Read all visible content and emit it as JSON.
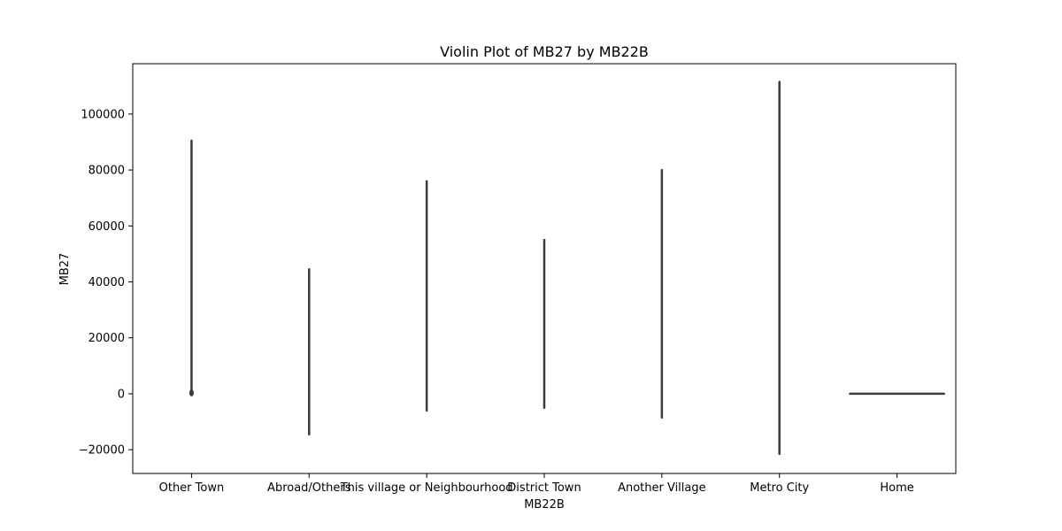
{
  "chart_data": {
    "type": "violin",
    "title": "Violin Plot of MB27 by MB22B",
    "xlabel": "MB22B",
    "ylabel": "MB27",
    "categories": [
      "Other Town",
      "Abroad/Others",
      "This village or Neighbourhood",
      "District Town",
      "Another Village",
      "Metro City",
      "Home"
    ],
    "violins": [
      {
        "category": "Other Town",
        "min": 0,
        "max": 90500,
        "bulge_at": 0
      },
      {
        "category": "Abroad/Others",
        "min": -14500,
        "max": 44500
      },
      {
        "category": "This village or Neighbourhood",
        "min": -6000,
        "max": 76000
      },
      {
        "category": "District Town",
        "min": -5000,
        "max": 55000
      },
      {
        "category": "Another Village",
        "min": -8500,
        "max": 80000
      },
      {
        "category": "Metro City",
        "min": -21500,
        "max": 111500
      },
      {
        "category": "Home",
        "min": 0,
        "max": 0,
        "horizontal_spread": true
      }
    ],
    "yticks": [
      -20000,
      0,
      20000,
      40000,
      60000,
      80000,
      100000
    ],
    "ytick_labels": [
      "−20000",
      "0",
      "20000",
      "40000",
      "60000",
      "80000",
      "100000"
    ],
    "ylim": [
      -28500,
      118000
    ],
    "grid": false,
    "line_color": "#3a3a3a"
  }
}
